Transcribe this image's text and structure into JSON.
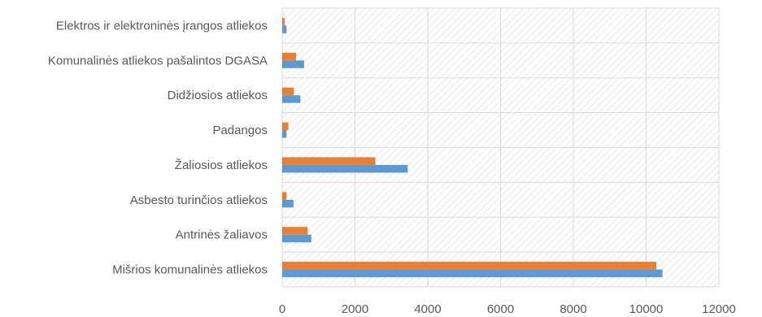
{
  "chart_data": {
    "type": "bar",
    "orientation": "horizontal",
    "categories": [
      "Elektros ir elektroninės įrangos atliekos",
      "Komunalinės atliekos pašalintos DGASA",
      "Didžiosios atliekos",
      "Padangos",
      "Žaliosios atliekos",
      "Asbesto  turinčios atliekos",
      "Antrinės žaliavos",
      "Mišrios komunalinės atliekos"
    ],
    "series": [
      {
        "values": [
          70,
          380,
          320,
          170,
          2560,
          120,
          700,
          10280
        ],
        "color": "#ED7D31"
      },
      {
        "values": [
          120,
          600,
          500,
          120,
          3450,
          310,
          800,
          10450
        ],
        "color": "#5B9BD5"
      }
    ],
    "xlim": [
      0,
      12000
    ],
    "xticks": [
      "0",
      "2000",
      "4000",
      "6000",
      "8000",
      "10000",
      "12000"
    ],
    "grid": true,
    "legend": "none"
  }
}
